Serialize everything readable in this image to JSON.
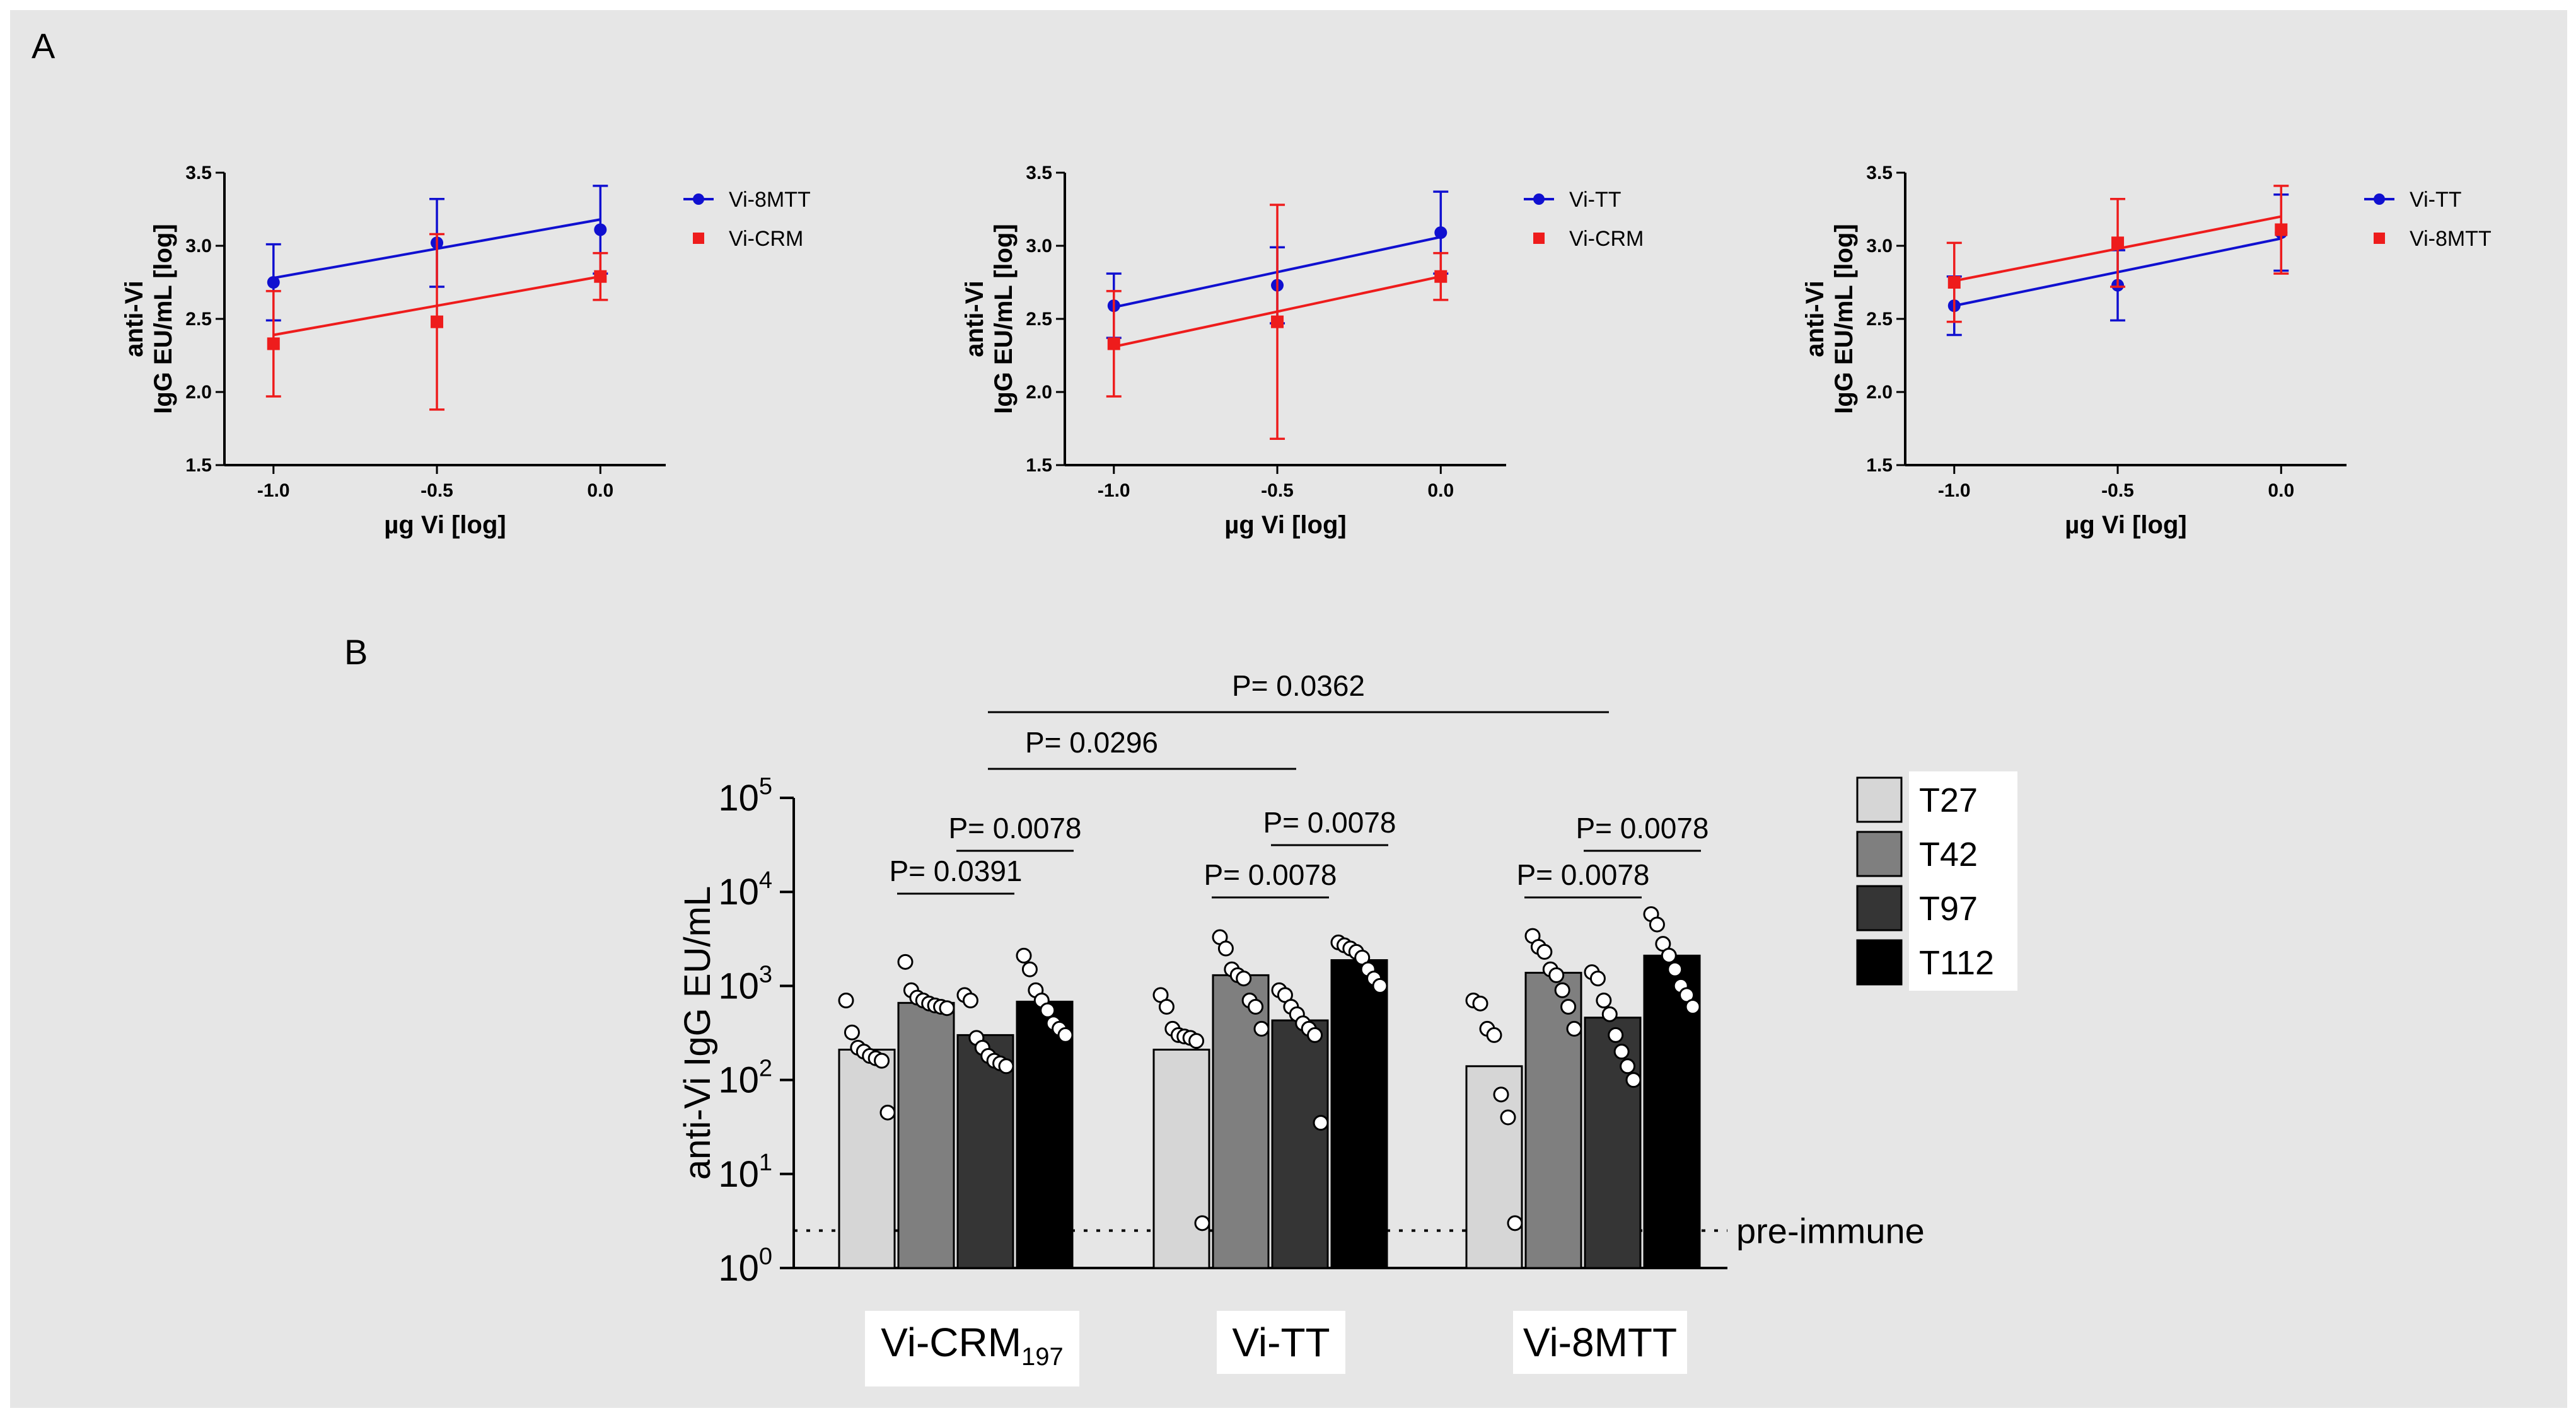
{
  "panel_labels": {
    "a": "A",
    "b": "B"
  },
  "chart_data": [
    {
      "type": "line",
      "title": "",
      "xlabel": "µg Vi [log]",
      "ylabel": [
        "anti-Vi",
        "IgG EU/mL [log]"
      ],
      "xlim": [
        -1.15,
        0.2
      ],
      "ylim": [
        1.5,
        3.5
      ],
      "xticks": [
        -1.0,
        -0.5,
        0.0
      ],
      "xtick_labels": [
        "-1.0",
        "-0.5",
        "0.0"
      ],
      "yticks": [
        1.5,
        2.0,
        2.5,
        3.0,
        3.5
      ],
      "ytick_labels": [
        "1.5",
        "2.0",
        "2.5",
        "3.0",
        "3.5"
      ],
      "series": [
        {
          "name": "Vi-8MTT",
          "color": "#1010d0",
          "marker": "circle",
          "x": [
            -1.0,
            -0.5,
            0.0
          ],
          "y": [
            2.75,
            3.02,
            3.11
          ],
          "err": [
            0.26,
            0.3,
            0.3
          ],
          "fit": [
            2.78,
            3.18
          ]
        },
        {
          "name": "Vi-CRM",
          "color": "#ee1c1c",
          "marker": "square",
          "x": [
            -1.0,
            -0.5,
            0.0
          ],
          "y": [
            2.33,
            2.48,
            2.79
          ],
          "err": [
            0.36,
            0.6,
            0.16
          ],
          "fit": [
            2.39,
            2.79
          ]
        }
      ]
    },
    {
      "type": "line",
      "title": "",
      "xlabel": "µg Vi [log]",
      "ylabel": [
        "anti-Vi",
        "IgG EU/mL [log]"
      ],
      "xlim": [
        -1.15,
        0.2
      ],
      "ylim": [
        1.5,
        3.5
      ],
      "xticks": [
        -1.0,
        -0.5,
        0.0
      ],
      "xtick_labels": [
        "-1.0",
        "-0.5",
        "0.0"
      ],
      "yticks": [
        1.5,
        2.0,
        2.5,
        3.0,
        3.5
      ],
      "ytick_labels": [
        "1.5",
        "2.0",
        "2.5",
        "3.0",
        "3.5"
      ],
      "series": [
        {
          "name": "Vi-TT",
          "color": "#1010d0",
          "marker": "circle",
          "x": [
            -1.0,
            -0.5,
            0.0
          ],
          "y": [
            2.59,
            2.73,
            3.09
          ],
          "err": [
            0.22,
            0.26,
            0.28
          ],
          "fit": [
            2.58,
            3.06
          ]
        },
        {
          "name": "Vi-CRM",
          "color": "#ee1c1c",
          "marker": "square",
          "x": [
            -1.0,
            -0.5,
            0.0
          ],
          "y": [
            2.33,
            2.48,
            2.79
          ],
          "err": [
            0.36,
            0.8,
            0.16
          ],
          "fit": [
            2.31,
            2.79
          ]
        }
      ]
    },
    {
      "type": "line",
      "title": "",
      "xlabel": "µg Vi [log]",
      "ylabel": [
        "anti-Vi",
        "IgG EU/mL [log]"
      ],
      "xlim": [
        -1.15,
        0.2
      ],
      "ylim": [
        1.5,
        3.5
      ],
      "xticks": [
        -1.0,
        -0.5,
        0.0
      ],
      "xtick_labels": [
        "-1.0",
        "-0.5",
        "0.0"
      ],
      "yticks": [
        1.5,
        2.0,
        2.5,
        3.0,
        3.5
      ],
      "ytick_labels": [
        "1.5",
        "2.0",
        "2.5",
        "3.0",
        "3.5"
      ],
      "series": [
        {
          "name": "Vi-TT",
          "color": "#1010d0",
          "marker": "circle",
          "x": [
            -1.0,
            -0.5,
            0.0
          ],
          "y": [
            2.59,
            2.73,
            3.09
          ],
          "err": [
            0.2,
            0.24,
            0.26
          ],
          "fit": [
            2.59,
            3.05
          ]
        },
        {
          "name": "Vi-8MTT",
          "color": "#ee1c1c",
          "marker": "square",
          "x": [
            -1.0,
            -0.5,
            0.0
          ],
          "y": [
            2.75,
            3.02,
            3.11
          ],
          "err": [
            0.27,
            0.3,
            0.3
          ],
          "fit": [
            2.76,
            3.2
          ]
        }
      ]
    },
    {
      "type": "bar",
      "title": "",
      "xlabel": "",
      "ylabel": "anti-Vi IgG EU/mL",
      "yscale": "log",
      "ylim": [
        1,
        100000
      ],
      "yticks": [
        1,
        10,
        100,
        1000,
        10000,
        100000
      ],
      "ytick_labels": [
        {
          "base": "10",
          "exp": "0"
        },
        {
          "base": "10",
          "exp": "1"
        },
        {
          "base": "10",
          "exp": "2"
        },
        {
          "base": "10",
          "exp": "3"
        },
        {
          "base": "10",
          "exp": "4"
        },
        {
          "base": "10",
          "exp": "5"
        }
      ],
      "group_labels": [
        {
          "main": "Vi-CRM",
          "sub": "197"
        },
        {
          "main": "Vi-TT",
          "sub": ""
        },
        {
          "main": "Vi-8MTT",
          "sub": ""
        }
      ],
      "series": [
        {
          "name": "T27",
          "color": "#d6d6d6",
          "values": [
            210,
            210,
            140
          ]
        },
        {
          "name": "T42",
          "color": "#7f7f7f",
          "values": [
            660,
            1300,
            1380
          ]
        },
        {
          "name": "T97",
          "color": "#353535",
          "values": [
            300,
            430,
            460
          ]
        },
        {
          "name": "T112",
          "color": "#000000",
          "values": [
            680,
            1880,
            2100
          ]
        }
      ],
      "points": [
        [
          [
            700,
            320,
            220,
            200,
            180,
            170,
            160,
            45
          ],
          [
            1800,
            900,
            750,
            700,
            650,
            620,
            600,
            580
          ],
          [
            800,
            700,
            280,
            220,
            180,
            160,
            150,
            140
          ],
          [
            2100,
            1500,
            900,
            700,
            550,
            400,
            350,
            300
          ]
        ],
        [
          [
            800,
            600,
            350,
            300,
            290,
            280,
            260,
            3
          ],
          [
            3300,
            2500,
            1500,
            1300,
            1200,
            700,
            600,
            350
          ],
          [
            900,
            800,
            600,
            500,
            400,
            350,
            300,
            35
          ],
          [
            2900,
            2700,
            2500,
            2300,
            2000,
            1500,
            1200,
            1000
          ]
        ],
        [
          [
            700,
            650,
            350,
            300,
            70,
            40,
            3
          ],
          [
            3400,
            2600,
            2300,
            1500,
            1300,
            900,
            600,
            350
          ],
          [
            1400,
            1200,
            700,
            500,
            300,
            200,
            140,
            100
          ],
          [
            5800,
            4500,
            2800,
            2100,
            1500,
            1000,
            800,
            600
          ]
        ]
      ],
      "pre_immune": {
        "value": 2.5,
        "label": "pre-immune"
      },
      "significance": [
        {
          "label": "P= 0.0391",
          "group": 0,
          "from": 1,
          "to": 2
        },
        {
          "label": "P= 0.0078",
          "group": 0,
          "from": 2,
          "to": 3
        },
        {
          "label": "P= 0.0078",
          "group": 1,
          "from": 1,
          "to": 2
        },
        {
          "label": "P= 0.0078",
          "group": 1,
          "from": 2,
          "to": 3
        },
        {
          "label": "P= 0.0078",
          "group": 2,
          "from": 1,
          "to": 2
        },
        {
          "label": "P= 0.0078",
          "group": 2,
          "from": 2,
          "to": 3
        },
        {
          "label": "P= 0.0296",
          "between": [
            0,
            1
          ]
        },
        {
          "label": "P= 0.0362",
          "between": [
            0,
            2
          ]
        }
      ]
    }
  ]
}
